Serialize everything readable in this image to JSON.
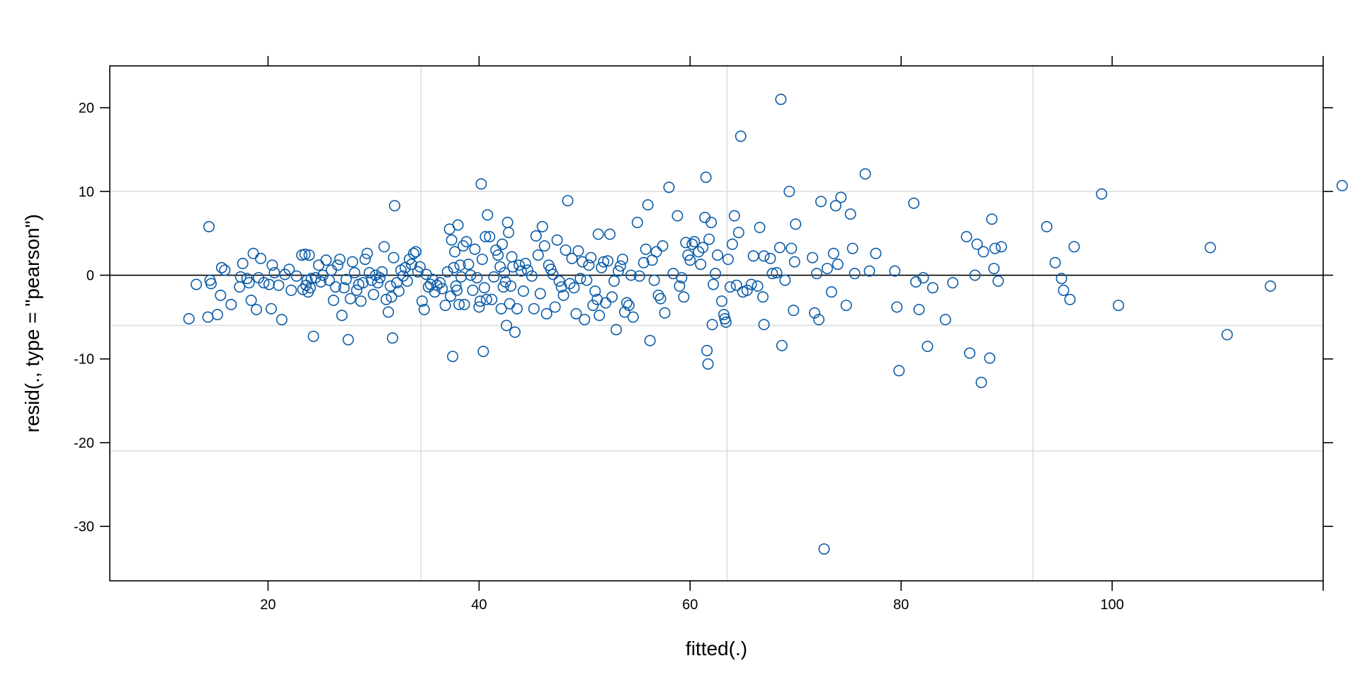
{
  "chart_data": {
    "type": "scatter",
    "xlabel": "fitted(.)",
    "ylabel": "resid(., type = \"pearson\")",
    "xlim": [
      5,
      120
    ],
    "ylim": [
      -36.5,
      25
    ],
    "x_ticks": [
      20,
      40,
      60,
      80,
      100
    ],
    "y_ticks": [
      -30,
      -20,
      -10,
      0,
      10,
      20
    ],
    "x_tick_labels": [
      "20",
      "40",
      "60",
      "80",
      "100"
    ],
    "y_tick_labels": [
      "-30",
      "-20",
      "-10",
      "0",
      "10",
      "20"
    ],
    "vertical_gridlines": [
      34.5,
      63.5,
      92.5
    ],
    "horizontal_gridlines": [
      -21,
      -6,
      10
    ],
    "reference_line_y": 0,
    "grid": true,
    "legend": "none",
    "colors": {
      "points": "#0B5CA8",
      "grid": "#DDDDDD",
      "axis": "#000000"
    },
    "points": [
      [
        12.5,
        -5.2
      ],
      [
        13.2,
        -1.1
      ],
      [
        14.3,
        -5.0
      ],
      [
        14.4,
        5.8
      ],
      [
        14.5,
        -0.6
      ],
      [
        14.6,
        -1.0
      ],
      [
        15.2,
        -4.7
      ],
      [
        15.5,
        -2.4
      ],
      [
        15.6,
        0.9
      ],
      [
        15.9,
        0.6
      ],
      [
        16.5,
        -3.5
      ],
      [
        17.3,
        -1.4
      ],
      [
        17.4,
        -0.2
      ],
      [
        17.6,
        1.4
      ],
      [
        18.0,
        -0.4
      ],
      [
        18.2,
        -0.9
      ],
      [
        18.4,
        -3.0
      ],
      [
        18.6,
        2.6
      ],
      [
        18.9,
        -4.1
      ],
      [
        19.1,
        -0.3
      ],
      [
        19.3,
        2.0
      ],
      [
        19.6,
        -0.9
      ],
      [
        20.1,
        -1.1
      ],
      [
        20.3,
        -4.0
      ],
      [
        20.4,
        1.2
      ],
      [
        20.6,
        0.3
      ],
      [
        21.0,
        -1.2
      ],
      [
        21.3,
        -5.3
      ],
      [
        21.6,
        0.1
      ],
      [
        22.0,
        0.7
      ],
      [
        22.2,
        -1.8
      ],
      [
        22.7,
        -0.1
      ],
      [
        23.2,
        2.4
      ],
      [
        23.3,
        -1.7
      ],
      [
        23.5,
        2.5
      ],
      [
        23.6,
        -1.2
      ],
      [
        23.7,
        -0.6
      ],
      [
        23.8,
        -2.0
      ],
      [
        23.9,
        2.4
      ],
      [
        24.0,
        -1.5
      ],
      [
        24.1,
        -0.4
      ],
      [
        24.3,
        -7.3
      ],
      [
        24.5,
        -0.3
      ],
      [
        24.8,
        1.2
      ],
      [
        25.0,
        -0.8
      ],
      [
        25.2,
        0.0
      ],
      [
        25.5,
        1.8
      ],
      [
        25.8,
        -0.6
      ],
      [
        26.0,
        0.6
      ],
      [
        26.2,
        -3.0
      ],
      [
        26.4,
        -1.4
      ],
      [
        26.6,
        1.2
      ],
      [
        26.8,
        1.9
      ],
      [
        27.0,
        -4.8
      ],
      [
        27.2,
        -1.5
      ],
      [
        27.4,
        -0.5
      ],
      [
        27.6,
        -7.7
      ],
      [
        27.8,
        -2.8
      ],
      [
        28.0,
        1.6
      ],
      [
        28.2,
        0.3
      ],
      [
        28.4,
        -1.8
      ],
      [
        28.6,
        -1.1
      ],
      [
        28.8,
        -3.1
      ],
      [
        29.0,
        -0.9
      ],
      [
        29.2,
        1.9
      ],
      [
        29.4,
        2.6
      ],
      [
        29.6,
        0.3
      ],
      [
        29.8,
        -0.6
      ],
      [
        30.0,
        -2.3
      ],
      [
        30.2,
        0.0
      ],
      [
        30.4,
        -0.9
      ],
      [
        30.6,
        -0.3
      ],
      [
        30.8,
        0.4
      ],
      [
        31.0,
        3.4
      ],
      [
        31.2,
        -2.9
      ],
      [
        31.4,
        -4.4
      ],
      [
        31.6,
        -1.3
      ],
      [
        31.7,
        -2.6
      ],
      [
        31.8,
        -7.5
      ],
      [
        31.9,
        2.1
      ],
      [
        32.0,
        8.3
      ],
      [
        32.2,
        -0.9
      ],
      [
        32.4,
        -1.9
      ],
      [
        32.6,
        0.6
      ],
      [
        32.8,
        -0.1
      ],
      [
        33.0,
        0.9
      ],
      [
        33.2,
        -0.7
      ],
      [
        33.4,
        1.9
      ],
      [
        33.6,
        1.3
      ],
      [
        33.8,
        2.6
      ],
      [
        34.0,
        2.8
      ],
      [
        34.2,
        0.4
      ],
      [
        34.4,
        1.0
      ],
      [
        34.6,
        -3.1
      ],
      [
        34.8,
        -4.1
      ],
      [
        35.0,
        0.1
      ],
      [
        35.2,
        -1.4
      ],
      [
        35.4,
        -1.1
      ],
      [
        35.6,
        -0.5
      ],
      [
        35.8,
        -2.0
      ],
      [
        36.0,
        -1.2
      ],
      [
        36.3,
        -0.9
      ],
      [
        36.5,
        -1.6
      ],
      [
        36.8,
        -3.6
      ],
      [
        37.0,
        0.4
      ],
      [
        37.2,
        5.5
      ],
      [
        37.3,
        -2.5
      ],
      [
        37.4,
        4.2
      ],
      [
        37.5,
        -9.7
      ],
      [
        37.6,
        0.9
      ],
      [
        37.7,
        2.8
      ],
      [
        37.8,
        -1.3
      ],
      [
        37.9,
        -1.8
      ],
      [
        38.0,
        6.0
      ],
      [
        38.1,
        -3.5
      ],
      [
        38.2,
        1.2
      ],
      [
        38.3,
        -0.2
      ],
      [
        38.5,
        3.5
      ],
      [
        38.6,
        -3.5
      ],
      [
        38.8,
        4.0
      ],
      [
        39.0,
        1.3
      ],
      [
        39.2,
        0.0
      ],
      [
        39.4,
        -1.8
      ],
      [
        39.6,
        3.1
      ],
      [
        39.8,
        -0.3
      ],
      [
        40.0,
        -3.8
      ],
      [
        40.1,
        -3.1
      ],
      [
        40.2,
        10.9
      ],
      [
        40.3,
        1.9
      ],
      [
        40.4,
        -9.1
      ],
      [
        40.5,
        -1.5
      ],
      [
        40.6,
        4.6
      ],
      [
        40.7,
        -2.9
      ],
      [
        40.8,
        7.2
      ],
      [
        41.0,
        4.6
      ],
      [
        41.2,
        -2.9
      ],
      [
        41.4,
        -0.2
      ],
      [
        41.6,
        3.0
      ],
      [
        41.8,
        2.4
      ],
      [
        42.0,
        1.0
      ],
      [
        42.1,
        -4.0
      ],
      [
        42.2,
        3.7
      ],
      [
        42.3,
        -1.4
      ],
      [
        42.4,
        0.3
      ],
      [
        42.5,
        -0.8
      ],
      [
        42.6,
        -6.0
      ],
      [
        42.7,
        6.3
      ],
      [
        42.8,
        5.1
      ],
      [
        42.9,
        -3.4
      ],
      [
        43.0,
        -1.3
      ],
      [
        43.1,
        2.2
      ],
      [
        43.2,
        1.0
      ],
      [
        43.4,
        -6.8
      ],
      [
        43.6,
        -4.0
      ],
      [
        43.8,
        1.2
      ],
      [
        44.0,
        0.5
      ],
      [
        44.2,
        -1.9
      ],
      [
        44.4,
        1.4
      ],
      [
        44.6,
        0.6
      ],
      [
        45.0,
        -0.1
      ],
      [
        45.2,
        -4.0
      ],
      [
        45.4,
        4.7
      ],
      [
        45.6,
        2.4
      ],
      [
        45.8,
        -2.2
      ],
      [
        46.0,
        5.8
      ],
      [
        46.2,
        3.5
      ],
      [
        46.4,
        -4.6
      ],
      [
        46.6,
        1.2
      ],
      [
        46.8,
        0.7
      ],
      [
        47.0,
        0.1
      ],
      [
        47.2,
        -3.8
      ],
      [
        47.4,
        4.2
      ],
      [
        47.6,
        -0.7
      ],
      [
        47.8,
        -1.4
      ],
      [
        48.0,
        -2.4
      ],
      [
        48.2,
        3.0
      ],
      [
        48.4,
        8.9
      ],
      [
        48.6,
        -1.0
      ],
      [
        48.8,
        2.0
      ],
      [
        49.0,
        -1.5
      ],
      [
        49.2,
        -4.6
      ],
      [
        49.4,
        2.9
      ],
      [
        49.6,
        -0.4
      ],
      [
        49.8,
        1.6
      ],
      [
        50.0,
        -5.3
      ],
      [
        50.2,
        -0.6
      ],
      [
        50.4,
        1.2
      ],
      [
        50.6,
        2.1
      ],
      [
        50.8,
        -3.6
      ],
      [
        51.0,
        -1.9
      ],
      [
        51.2,
        -2.9
      ],
      [
        51.3,
        4.9
      ],
      [
        51.4,
        -4.8
      ],
      [
        51.6,
        0.9
      ],
      [
        51.8,
        1.6
      ],
      [
        52.0,
        -3.3
      ],
      [
        52.2,
        1.7
      ],
      [
        52.4,
        4.9
      ],
      [
        52.6,
        -2.6
      ],
      [
        52.8,
        -0.7
      ],
      [
        53.0,
        -6.5
      ],
      [
        53.2,
        0.5
      ],
      [
        53.4,
        1.1
      ],
      [
        53.6,
        1.9
      ],
      [
        53.8,
        -4.4
      ],
      [
        54.0,
        -3.3
      ],
      [
        54.2,
        -3.6
      ],
      [
        54.4,
        0.0
      ],
      [
        54.6,
        -5.0
      ],
      [
        55.0,
        6.3
      ],
      [
        55.2,
        -0.1
      ],
      [
        55.6,
        1.5
      ],
      [
        55.8,
        3.1
      ],
      [
        56.0,
        8.4
      ],
      [
        56.2,
        -7.8
      ],
      [
        56.4,
        1.8
      ],
      [
        56.6,
        -0.6
      ],
      [
        56.8,
        2.8
      ],
      [
        57.0,
        -2.4
      ],
      [
        57.2,
        -2.8
      ],
      [
        57.4,
        3.5
      ],
      [
        57.6,
        -4.5
      ],
      [
        58.0,
        10.5
      ],
      [
        58.4,
        0.2
      ],
      [
        58.8,
        7.1
      ],
      [
        59.0,
        -1.3
      ],
      [
        59.2,
        -0.3
      ],
      [
        59.4,
        -2.6
      ],
      [
        59.6,
        3.9
      ],
      [
        59.8,
        2.4
      ],
      [
        60.0,
        1.8
      ],
      [
        60.2,
        3.7
      ],
      [
        60.4,
        4.0
      ],
      [
        60.8,
        2.8
      ],
      [
        61.0,
        1.3
      ],
      [
        61.2,
        3.3
      ],
      [
        61.4,
        6.9
      ],
      [
        61.5,
        11.7
      ],
      [
        61.6,
        -9.0
      ],
      [
        61.7,
        -10.6
      ],
      [
        61.8,
        4.3
      ],
      [
        62.0,
        6.3
      ],
      [
        62.1,
        -5.9
      ],
      [
        62.2,
        -1.1
      ],
      [
        62.4,
        0.2
      ],
      [
        62.6,
        2.4
      ],
      [
        63.0,
        -3.1
      ],
      [
        63.2,
        -4.7
      ],
      [
        63.3,
        -5.2
      ],
      [
        63.4,
        -5.6
      ],
      [
        63.6,
        1.9
      ],
      [
        63.8,
        -1.4
      ],
      [
        64.0,
        3.7
      ],
      [
        64.2,
        7.1
      ],
      [
        64.4,
        -1.2
      ],
      [
        64.6,
        5.1
      ],
      [
        64.8,
        16.6
      ],
      [
        65.0,
        -2.0
      ],
      [
        65.4,
        -1.8
      ],
      [
        65.8,
        -1.1
      ],
      [
        66.0,
        2.3
      ],
      [
        66.4,
        -1.3
      ],
      [
        66.6,
        5.7
      ],
      [
        66.9,
        -2.6
      ],
      [
        67.0,
        2.3
      ],
      [
        67.0,
        -5.9
      ],
      [
        67.6,
        2.0
      ],
      [
        67.8,
        0.2
      ],
      [
        68.2,
        0.3
      ],
      [
        68.5,
        3.3
      ],
      [
        68.6,
        21.0
      ],
      [
        68.7,
        -8.4
      ],
      [
        69.0,
        -0.6
      ],
      [
        69.4,
        10.0
      ],
      [
        69.6,
        3.2
      ],
      [
        69.8,
        -4.2
      ],
      [
        69.9,
        1.6
      ],
      [
        70.0,
        6.1
      ],
      [
        71.6,
        2.1
      ],
      [
        71.8,
        -4.5
      ],
      [
        72.0,
        0.2
      ],
      [
        72.2,
        -5.3
      ],
      [
        72.4,
        8.8
      ],
      [
        72.7,
        -32.7
      ],
      [
        73.0,
        0.8
      ],
      [
        73.4,
        -2.0
      ],
      [
        73.6,
        2.6
      ],
      [
        73.8,
        8.3
      ],
      [
        74.0,
        1.3
      ],
      [
        74.3,
        9.3
      ],
      [
        74.8,
        -3.6
      ],
      [
        75.2,
        7.3
      ],
      [
        75.4,
        3.2
      ],
      [
        75.6,
        0.2
      ],
      [
        76.6,
        12.1
      ],
      [
        77.0,
        0.5
      ],
      [
        77.6,
        2.6
      ],
      [
        79.4,
        0.5
      ],
      [
        79.6,
        -3.8
      ],
      [
        79.8,
        -11.4
      ],
      [
        81.2,
        8.6
      ],
      [
        81.4,
        -0.8
      ],
      [
        81.7,
        -4.1
      ],
      [
        82.1,
        -0.3
      ],
      [
        82.5,
        -8.5
      ],
      [
        83.0,
        -1.5
      ],
      [
        84.2,
        -5.3
      ],
      [
        84.9,
        -0.9
      ],
      [
        86.2,
        4.6
      ],
      [
        86.5,
        -9.3
      ],
      [
        87.0,
        0.0
      ],
      [
        87.2,
        3.7
      ],
      [
        87.6,
        -12.8
      ],
      [
        87.8,
        2.8
      ],
      [
        88.4,
        -9.9
      ],
      [
        88.6,
        6.7
      ],
      [
        88.8,
        0.8
      ],
      [
        88.9,
        3.2
      ],
      [
        89.2,
        -0.7
      ],
      [
        89.5,
        3.4
      ],
      [
        93.8,
        5.8
      ],
      [
        94.6,
        1.5
      ],
      [
        95.2,
        -0.4
      ],
      [
        95.4,
        -1.8
      ],
      [
        96.0,
        -2.9
      ],
      [
        96.4,
        3.4
      ],
      [
        99.0,
        9.7
      ],
      [
        100.6,
        -3.6
      ],
      [
        109.3,
        3.3
      ],
      [
        110.9,
        -7.1
      ],
      [
        115.0,
        -1.3
      ],
      [
        121.8,
        10.7
      ]
    ]
  }
}
